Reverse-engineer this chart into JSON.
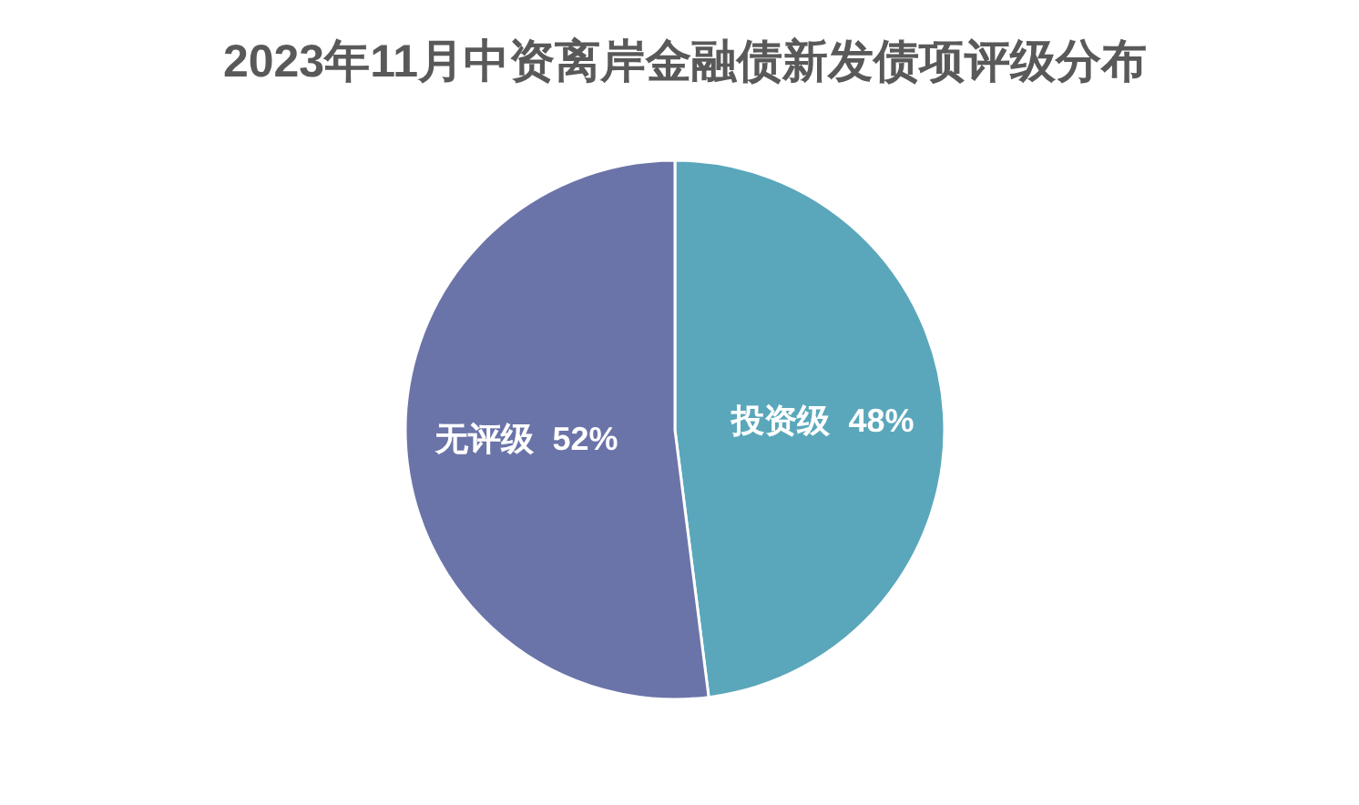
{
  "chart_data": {
    "type": "pie",
    "title": "2023年11月中资离岸金融债新发债项评级分布",
    "categories": [
      "投资级",
      "无评级"
    ],
    "values": [
      48,
      52
    ],
    "colors": [
      "#5aa7bb",
      "#6b74a8"
    ],
    "value_labels": [
      "48%",
      "52%"
    ]
  }
}
